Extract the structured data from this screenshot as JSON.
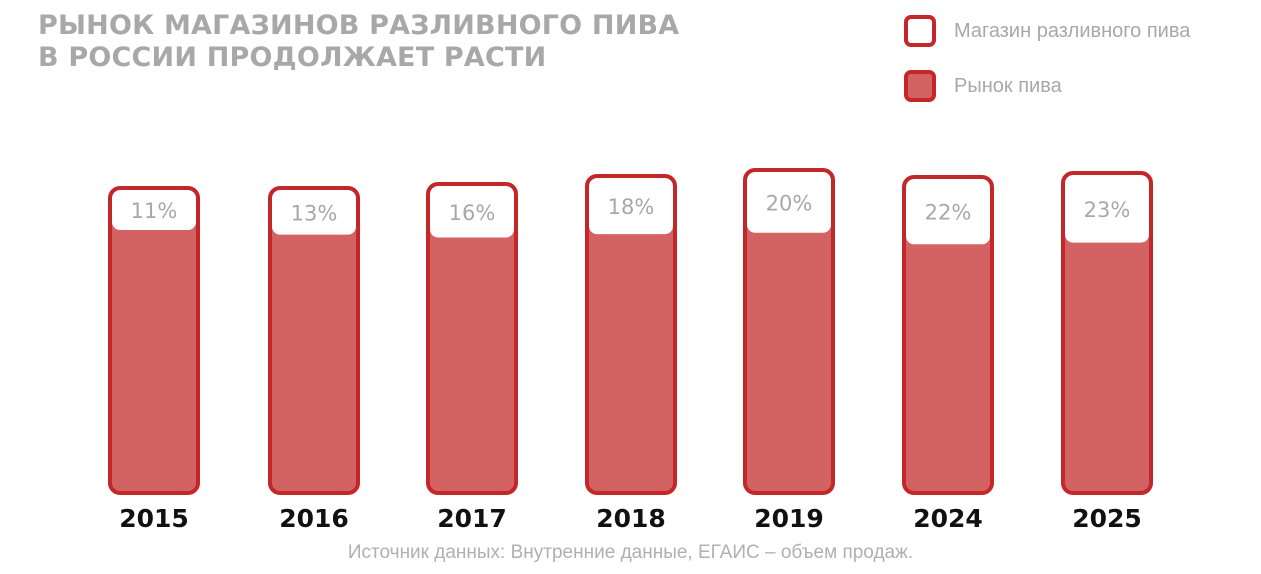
{
  "chart_data": {
    "type": "bar",
    "title_lines": [
      "Рынок магазинов разливного пива",
      "в России продолжает расти"
    ],
    "categories": [
      "2015",
      "2016",
      "2017",
      "2018",
      "2019",
      "2024",
      "2025"
    ],
    "series": [
      {
        "name": "Магазин разливного пива",
        "values": [
          11,
          13,
          16,
          18,
          20,
          22,
          23
        ],
        "labels": [
          "11%",
          "13%",
          "16%",
          "18%",
          "20%",
          "22%",
          "23%"
        ],
        "color": "#ffffff"
      },
      {
        "name": "Рынок пива",
        "values": [
          100,
          100,
          100,
          100,
          100,
          100,
          100
        ],
        "color": "#d26362"
      }
    ],
    "unit": "%",
    "legend_position": "top-right",
    "grid": false,
    "border_color": "#c4272a",
    "source": "Источник данных: Внутренние данные, ЕГАИС – объем продаж."
  }
}
